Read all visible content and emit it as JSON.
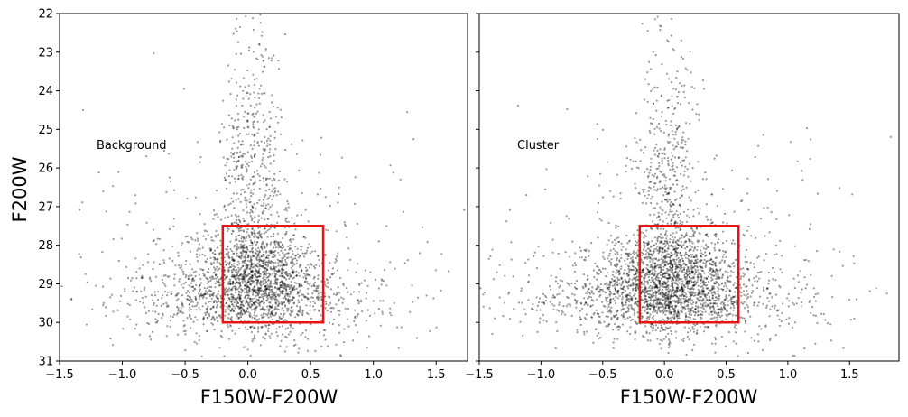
{
  "chart_data": [
    {
      "type": "scatter",
      "panel": "left",
      "annotation": "Background",
      "xlabel": "F150W-F200W",
      "ylabel": "F200W",
      "xlim": [
        -1.5,
        1.75
      ],
      "ylim": [
        31,
        22
      ],
      "y_inverted": true,
      "xticks": [
        -1.5,
        -1.0,
        -0.5,
        0.0,
        0.5,
        1.0,
        1.5
      ],
      "xtick_labels": [
        "−1.5",
        "−1.0",
        "−0.5",
        "0.0",
        "0.5",
        "1.0",
        "1.5"
      ],
      "yticks": [
        22,
        23,
        24,
        25,
        26,
        27,
        28,
        29,
        30,
        31
      ],
      "ytick_labels": [
        "22",
        "23",
        "24",
        "25",
        "26",
        "27",
        "28",
        "29",
        "30",
        "31"
      ],
      "point_color": "#000000",
      "point_alpha": 0.4,
      "box": {
        "x0": -0.2,
        "x1": 0.6,
        "y0": 27.5,
        "y1": 30.0,
        "color": "#ee1111"
      },
      "density": [
        {
          "cx": 0.05,
          "cy": 28.8,
          "sx": 0.25,
          "sy": 0.7,
          "n": 1300
        },
        {
          "cx": 0.0,
          "cy": 29.4,
          "sx": 0.55,
          "sy": 0.5,
          "n": 700
        },
        {
          "cx": 0.02,
          "cy": 26.3,
          "sx": 0.12,
          "sy": 1.4,
          "n": 320
        },
        {
          "cx": 0.05,
          "cy": 24.2,
          "sx": 0.12,
          "sy": 1.3,
          "n": 110
        },
        {
          "cx": 0.05,
          "cy": 28.5,
          "sx": 0.75,
          "sy": 1.6,
          "n": 350
        }
      ]
    },
    {
      "type": "scatter",
      "panel": "right",
      "annotation": "Cluster",
      "xlabel": "F150W-F200W",
      "ylabel": "",
      "xlim": [
        -1.5,
        1.9
      ],
      "ylim": [
        31,
        22
      ],
      "y_inverted": true,
      "xticks": [
        -1.5,
        -1.0,
        -0.5,
        0.0,
        0.5,
        1.0,
        1.5
      ],
      "xtick_labels": [
        "−1.5",
        "−1.0",
        "−0.5",
        "0.0",
        "0.5",
        "1.0",
        "1.5"
      ],
      "yticks": [
        22,
        23,
        24,
        25,
        26,
        27,
        28,
        29,
        30,
        31
      ],
      "ytick_labels": [],
      "point_color": "#000000",
      "point_alpha": 0.4,
      "box": {
        "x0": -0.2,
        "x1": 0.6,
        "y0": 27.5,
        "y1": 30.0,
        "color": "#ee1111"
      },
      "density": [
        {
          "cx": 0.05,
          "cy": 28.9,
          "sx": 0.28,
          "sy": 0.65,
          "n": 1500
        },
        {
          "cx": 0.0,
          "cy": 29.4,
          "sx": 0.6,
          "sy": 0.5,
          "n": 800
        },
        {
          "cx": 0.02,
          "cy": 26.6,
          "sx": 0.12,
          "sy": 1.2,
          "n": 320
        },
        {
          "cx": 0.05,
          "cy": 24.5,
          "sx": 0.12,
          "sy": 1.3,
          "n": 110
        },
        {
          "cx": 0.1,
          "cy": 28.6,
          "sx": 0.8,
          "sy": 1.6,
          "n": 380
        }
      ]
    }
  ]
}
